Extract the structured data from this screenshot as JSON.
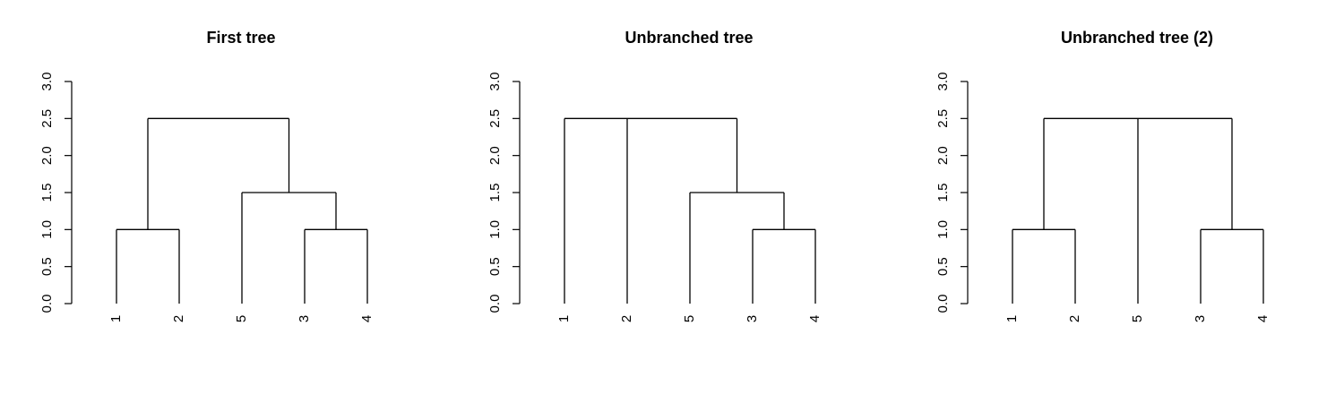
{
  "figure": {
    "background": "#ffffff",
    "ink": "#000000"
  },
  "chart_data": [
    {
      "type": "dendrogram",
      "title": "First tree",
      "ylim": [
        0,
        3
      ],
      "yticks": [
        "0.0",
        "0.5",
        "1.0",
        "1.5",
        "2.0",
        "2.5",
        "3.0"
      ],
      "leaves": [
        "1",
        "2",
        "5",
        "3",
        "4"
      ],
      "merges": [
        {
          "children": [
            "1",
            "2"
          ],
          "height": 1.0
        },
        {
          "children": [
            "3",
            "4"
          ],
          "height": 1.0
        },
        {
          "children": [
            "5",
            "(3,4)"
          ],
          "height": 1.5
        },
        {
          "children": [
            "(1,2)",
            "(5,(3,4))"
          ],
          "height": 2.5
        }
      ],
      "grid": false
    },
    {
      "type": "dendrogram",
      "title": "Unbranched tree",
      "ylim": [
        0,
        3
      ],
      "yticks": [
        "0.0",
        "0.5",
        "1.0",
        "1.5",
        "2.0",
        "2.5",
        "3.0"
      ],
      "leaves": [
        "1",
        "2",
        "5",
        "3",
        "4"
      ],
      "merges": [
        {
          "children": [
            "3",
            "4"
          ],
          "height": 1.0
        },
        {
          "children": [
            "5",
            "(3,4)"
          ],
          "height": 1.5
        },
        {
          "children": [
            "1",
            "2",
            "(5,(3,4))"
          ],
          "height": 2.5
        }
      ],
      "grid": false
    },
    {
      "type": "dendrogram",
      "title": "Unbranched tree (2)",
      "ylim": [
        0,
        3
      ],
      "yticks": [
        "0.0",
        "0.5",
        "1.0",
        "1.5",
        "2.0",
        "2.5",
        "3.0"
      ],
      "leaves": [
        "1",
        "2",
        "5",
        "3",
        "4"
      ],
      "merges": [
        {
          "children": [
            "1",
            "2"
          ],
          "height": 1.0
        },
        {
          "children": [
            "3",
            "4"
          ],
          "height": 1.0
        },
        {
          "children": [
            "(1,2)",
            "5",
            "(3,4)"
          ],
          "height": 2.5
        }
      ],
      "grid": false
    }
  ]
}
